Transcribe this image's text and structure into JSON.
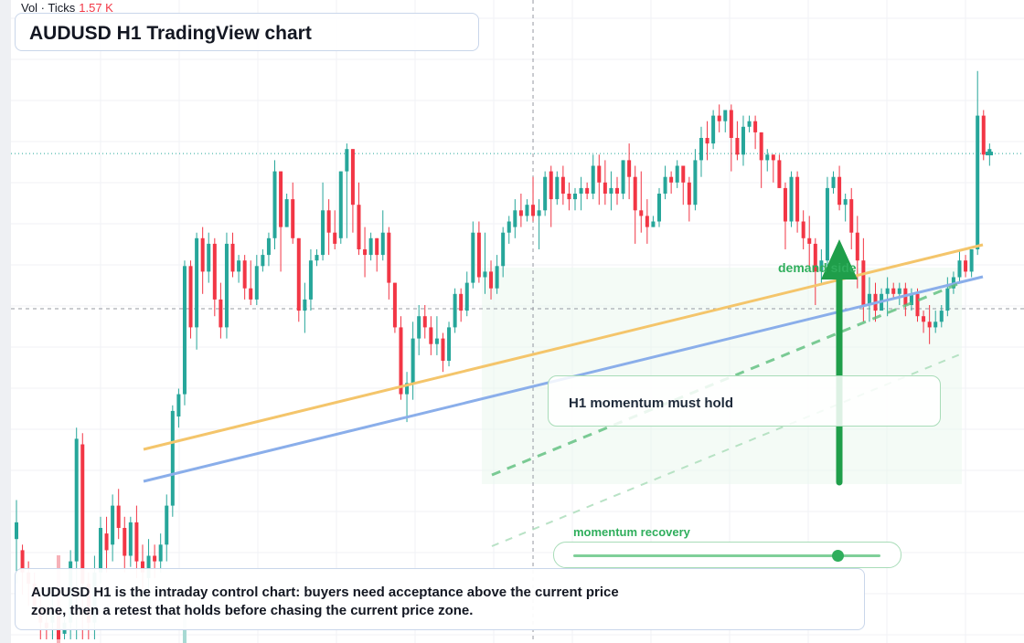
{
  "volume": {
    "label": "Vol · Ticks",
    "value": "1.57 K"
  },
  "title": "AUDUSD H1 TradingView chart",
  "annotations": {
    "hold_box": "H1 momentum must hold",
    "demand_label": "demand side",
    "momentum_label": "momentum recovery",
    "momentum_level": 0.86,
    "note": "AUDUSD H1 is the intraday control chart: buyers need acceptance above the current price zone, then a retest that holds before chasing the current price zone."
  },
  "colors": {
    "up": "#26a69a",
    "down": "#f23645",
    "vol_up": "#a7d9d3",
    "vol_down": "#f7b1b8",
    "trend_orange": "#f4c56b",
    "trend_blue": "#8aaeea",
    "accent_green": "#1f9e4a"
  },
  "chart_data": {
    "type": "candlestick",
    "title": "AUDUSD H1 TradingView chart",
    "y_range": [
      0,
      100
    ],
    "current_price": 87.2,
    "crosshair": {
      "bar": 86,
      "price": 47
    },
    "candles": [
      [
        18,
        21,
        10,
        25
      ],
      [
        16,
        12,
        8,
        17
      ],
      [
        12,
        10,
        6,
        14
      ],
      [
        10,
        6,
        4,
        12
      ],
      [
        6,
        3,
        0,
        8
      ],
      [
        3,
        2,
        0,
        6
      ],
      [
        3,
        5,
        0,
        8
      ],
      [
        5,
        0,
        0,
        7
      ],
      [
        1,
        3,
        0,
        5
      ],
      [
        3,
        14,
        0,
        16
      ],
      [
        14,
        36,
        0,
        38
      ],
      [
        35,
        10,
        0,
        37
      ],
      [
        10,
        3,
        0,
        12
      ],
      [
        3,
        12,
        0,
        15
      ],
      [
        12,
        20,
        10,
        22
      ],
      [
        19,
        16,
        12,
        22
      ],
      [
        17,
        24,
        14,
        26
      ],
      [
        24,
        20,
        18,
        27
      ],
      [
        20,
        15,
        12,
        22
      ],
      [
        15,
        21,
        13,
        22
      ],
      [
        21,
        14,
        11,
        24
      ],
      [
        14,
        12,
        9,
        17
      ],
      [
        11,
        15,
        9,
        18
      ],
      [
        15,
        14,
        11,
        17
      ],
      [
        14,
        17,
        12,
        19
      ],
      [
        17,
        24,
        14,
        26
      ],
      [
        24,
        41,
        22,
        42
      ],
      [
        40,
        44,
        38,
        45
      ],
      [
        44,
        67,
        42,
        68
      ],
      [
        67,
        56,
        54,
        68
      ],
      [
        56,
        72,
        52,
        73
      ],
      [
        72,
        66,
        62,
        74
      ],
      [
        66,
        71,
        64,
        73
      ],
      [
        71,
        61,
        58,
        72
      ],
      [
        61,
        56,
        54,
        64
      ],
      [
        56,
        71,
        54,
        73
      ],
      [
        71,
        66,
        65,
        73
      ],
      [
        66,
        68,
        64,
        69
      ],
      [
        68,
        63,
        61,
        69
      ],
      [
        63,
        61,
        60,
        68
      ],
      [
        61,
        67,
        60,
        69
      ],
      [
        67,
        69,
        66,
        70
      ],
      [
        69,
        72,
        67,
        73
      ],
      [
        72,
        84,
        70,
        86
      ],
      [
        84,
        74,
        66,
        84
      ],
      [
        74,
        79,
        74,
        80
      ],
      [
        79,
        72,
        71,
        82
      ],
      [
        72,
        59,
        57,
        72
      ],
      [
        59,
        61,
        55,
        64
      ],
      [
        61,
        68,
        59,
        70
      ],
      [
        68,
        69,
        67,
        70
      ],
      [
        69,
        77,
        68,
        82
      ],
      [
        77,
        73,
        69,
        79
      ],
      [
        73,
        71,
        70,
        77
      ],
      [
        72,
        84,
        71,
        84
      ],
      [
        84,
        88,
        72,
        89
      ],
      [
        88,
        78,
        73,
        88
      ],
      [
        78,
        70,
        69,
        82
      ],
      [
        70,
        69,
        65,
        74
      ],
      [
        69,
        72,
        68,
        73
      ],
      [
        72,
        69,
        66,
        72
      ],
      [
        69,
        73,
        68,
        77
      ],
      [
        73,
        64,
        61,
        74
      ],
      [
        64,
        56,
        55,
        64
      ],
      [
        56,
        44,
        43,
        58
      ],
      [
        44,
        46,
        39,
        48
      ],
      [
        46,
        54,
        43,
        57
      ],
      [
        54,
        58,
        51,
        60
      ],
      [
        58,
        56,
        54,
        60
      ],
      [
        56,
        53,
        51,
        58
      ],
      [
        53,
        54,
        51,
        58
      ],
      [
        54,
        50,
        48,
        55
      ],
      [
        50,
        56,
        49,
        57
      ],
      [
        56,
        62,
        55,
        63
      ],
      [
        62,
        59,
        57,
        63
      ],
      [
        59,
        64,
        58,
        66
      ],
      [
        64,
        73,
        63,
        75
      ],
      [
        73,
        65,
        64,
        75
      ],
      [
        65,
        66,
        62,
        73
      ],
      [
        66,
        63,
        61,
        68
      ],
      [
        63,
        67,
        62,
        69
      ],
      [
        67,
        73,
        65,
        74
      ],
      [
        73,
        75,
        71,
        76
      ],
      [
        74,
        77,
        72,
        79
      ],
      [
        77,
        76,
        74,
        80
      ],
      [
        76,
        78,
        75,
        79
      ],
      [
        78,
        76,
        75,
        83
      ],
      [
        76,
        77,
        70,
        79
      ],
      [
        77,
        83,
        76,
        84
      ],
      [
        84,
        79,
        74,
        85
      ],
      [
        79,
        83,
        78,
        84
      ],
      [
        83,
        80,
        78,
        85
      ],
      [
        80,
        79,
        77,
        82
      ],
      [
        79,
        80,
        77,
        81
      ],
      [
        80,
        81,
        77,
        83
      ],
      [
        81,
        80,
        79,
        82
      ],
      [
        80,
        85,
        79,
        87
      ],
      [
        85,
        82,
        78,
        87
      ],
      [
        82,
        80,
        78,
        86
      ],
      [
        80,
        81,
        77,
        84
      ],
      [
        81,
        80,
        78,
        83
      ],
      [
        80,
        86,
        79,
        86
      ],
      [
        86,
        83,
        79,
        89
      ],
      [
        83,
        77,
        71,
        85
      ],
      [
        77,
        76,
        73,
        84
      ],
      [
        76,
        74,
        71,
        79
      ],
      [
        74,
        75,
        74,
        76
      ],
      [
        75,
        80,
        74,
        81
      ],
      [
        80,
        83,
        79,
        85
      ],
      [
        83,
        82,
        80,
        84
      ],
      [
        82,
        85,
        81,
        86
      ],
      [
        85,
        82,
        78,
        85
      ],
      [
        82,
        78,
        75,
        83
      ],
      [
        78,
        86,
        77,
        88
      ],
      [
        86,
        90,
        83,
        92
      ],
      [
        90,
        89,
        86,
        93
      ],
      [
        89,
        94,
        88,
        95
      ],
      [
        94,
        93,
        91,
        96
      ],
      [
        93,
        95,
        91,
        95
      ],
      [
        95,
        90,
        84,
        96
      ],
      [
        90,
        87,
        86,
        93
      ],
      [
        87,
        92,
        85,
        94
      ],
      [
        92,
        93,
        91,
        94
      ],
      [
        93,
        91,
        88,
        94
      ],
      [
        91,
        86,
        81,
        91
      ],
      [
        86,
        87,
        84,
        88
      ],
      [
        87,
        86,
        82,
        87
      ],
      [
        86,
        81,
        81,
        87
      ],
      [
        81,
        75,
        70,
        82
      ],
      [
        75,
        83,
        74,
        84
      ],
      [
        83,
        75,
        73,
        84
      ],
      [
        75,
        72,
        70,
        77
      ],
      [
        72,
        71,
        67,
        76
      ],
      [
        71,
        66,
        60,
        72
      ],
      [
        66,
        68,
        64,
        70
      ],
      [
        68,
        81,
        67,
        83
      ],
      [
        81,
        83,
        80,
        84
      ],
      [
        83,
        78,
        77,
        85
      ],
      [
        78,
        79,
        75,
        80
      ],
      [
        79,
        73,
        70,
        81
      ],
      [
        73,
        68,
        63,
        76
      ],
      [
        68,
        60,
        57,
        72
      ],
      [
        60,
        62,
        57,
        65
      ],
      [
        62,
        59,
        57,
        64
      ],
      [
        59,
        62,
        60,
        63
      ],
      [
        62,
        63,
        58,
        65
      ],
      [
        63,
        62,
        61,
        64
      ],
      [
        62,
        63,
        60,
        64
      ],
      [
        63,
        60,
        58,
        64
      ],
      [
        60,
        62,
        59,
        63
      ],
      [
        62,
        58,
        57,
        63
      ],
      [
        58,
        57,
        55,
        59
      ],
      [
        57,
        56,
        53,
        60
      ],
      [
        56,
        57,
        55,
        59
      ],
      [
        57,
        59,
        56,
        60
      ],
      [
        59,
        63,
        58,
        65
      ],
      [
        63,
        65,
        62,
        66
      ],
      [
        65,
        68,
        64,
        70
      ],
      [
        68,
        66,
        65,
        69
      ],
      [
        66,
        70,
        65,
        70
      ],
      [
        70,
        94,
        69,
        102
      ],
      [
        94,
        87,
        86,
        95
      ],
      [
        87,
        88,
        85,
        89
      ]
    ],
    "volumes": [
      0,
      0,
      0,
      0,
      0,
      0,
      0,
      12,
      0,
      0,
      0,
      0,
      0,
      0,
      0,
      0,
      0,
      0,
      0,
      0,
      0,
      0,
      0,
      0,
      0,
      0,
      0,
      0,
      6,
      0,
      0,
      0,
      0,
      0,
      0,
      0,
      0,
      0,
      0,
      0,
      0,
      0,
      0,
      0,
      0,
      0,
      0,
      0,
      0,
      0,
      0,
      0,
      0,
      0,
      0,
      0,
      0,
      0,
      0,
      0,
      0,
      0,
      0,
      0,
      0,
      0,
      0,
      0,
      0,
      0,
      0,
      0,
      0,
      0,
      0,
      0,
      0,
      0,
      0,
      0,
      0,
      0,
      0,
      0,
      0,
      0,
      0,
      0,
      0,
      0,
      0,
      0,
      0,
      0,
      0,
      0,
      0,
      0,
      0,
      0,
      0,
      0,
      0,
      0,
      0,
      0,
      0,
      0,
      0,
      0,
      0,
      0,
      0,
      0,
      0,
      0,
      0,
      0,
      0,
      0,
      0,
      0,
      0,
      0,
      0,
      0,
      0,
      0,
      0,
      0,
      0,
      0,
      0,
      0,
      0,
      0,
      0,
      0,
      0,
      0,
      0,
      0,
      0,
      0,
      0,
      0,
      0,
      0,
      0,
      0,
      0,
      0,
      0,
      0,
      0,
      0,
      0,
      0,
      0,
      0,
      0,
      0
    ]
  }
}
